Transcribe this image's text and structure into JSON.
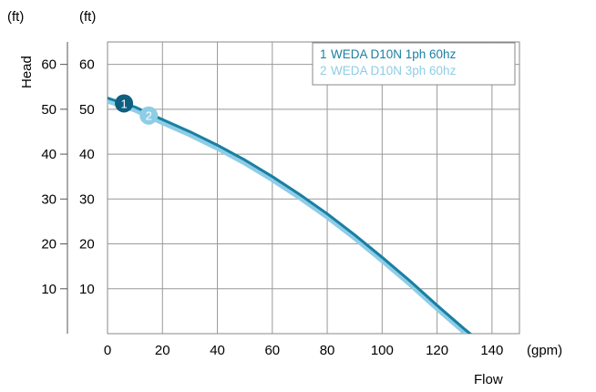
{
  "chart_data": {
    "type": "line",
    "title": "",
    "xlabel": "Flow",
    "x_unit": "(gpm)",
    "ylabel": "Head",
    "y_unit_outer": "(ft)",
    "y_unit_inner": "(ft)",
    "xlim": [
      0,
      150
    ],
    "ylim": [
      0,
      65
    ],
    "x_ticks": [
      "0",
      "20",
      "40",
      "60",
      "80",
      "100",
      "120",
      "140"
    ],
    "y_ticks": [
      "10",
      "20",
      "30",
      "40",
      "50",
      "60"
    ],
    "grid": true,
    "legend_position": "top-right",
    "series": [
      {
        "name": "WEDA D10N 1ph 60hz",
        "marker": "1",
        "color": "#1a7fa3",
        "marker_color": "#0e5f80",
        "marker_x": 6,
        "x": [
          0,
          10,
          20,
          30,
          40,
          50,
          60,
          70,
          80,
          90,
          100,
          110,
          120,
          130,
          133
        ],
        "y": [
          52.5,
          50.5,
          47.7,
          45.0,
          42.0,
          38.7,
          35.0,
          31.0,
          26.7,
          22.0,
          17.0,
          11.8,
          6.3,
          1.0,
          -0.5
        ]
      },
      {
        "name": "WEDA D10N 3ph 60hz",
        "marker": "2",
        "color": "#8ecde6",
        "marker_color": "#8ecde6",
        "marker_x": 15,
        "x": [
          0,
          10,
          20,
          30,
          40,
          50,
          60,
          70,
          80,
          90,
          100,
          110,
          120,
          130,
          133
        ],
        "y": [
          52.0,
          50.0,
          47.2,
          44.5,
          41.5,
          38.2,
          34.5,
          30.5,
          26.2,
          21.5,
          16.5,
          11.3,
          5.8,
          0.5,
          -1.0
        ]
      }
    ]
  }
}
